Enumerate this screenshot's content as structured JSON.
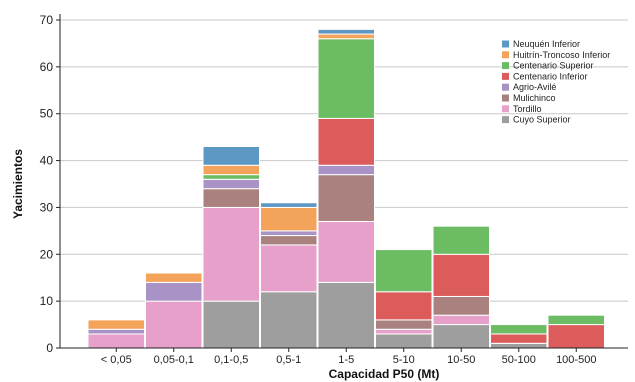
{
  "chart_data": {
    "type": "bar",
    "stacked": true,
    "title": "",
    "xlabel": "Capacidad P50 (Mt)",
    "ylabel": "Yacimientos",
    "ylim": [
      0,
      70
    ],
    "yticks": [
      0,
      10,
      20,
      30,
      40,
      50,
      60,
      70
    ],
    "grid": "horizontal",
    "legend_position": "top-right",
    "categories": [
      "< 0,05",
      "0,05-0,1",
      "0,1-0,5",
      "0,5-1",
      "1-5",
      "5-10",
      "10-50",
      "50-100",
      "100-500"
    ],
    "series": [
      {
        "name": "Cuyo Superior",
        "color": "#9e9e9e",
        "values": [
          0,
          0,
          10,
          12,
          14,
          3,
          5,
          1,
          0
        ]
      },
      {
        "name": "Tordillo",
        "color": "#e6a0c9",
        "values": [
          3,
          10,
          20,
          10,
          13,
          1,
          2,
          0,
          0
        ]
      },
      {
        "name": "Mulichinco",
        "color": "#a98280",
        "values": [
          0,
          0,
          4,
          2,
          10,
          2,
          4,
          0,
          0
        ]
      },
      {
        "name": "Agrio-Avilé",
        "color": "#a892c6",
        "values": [
          1,
          4,
          2,
          1,
          2,
          0,
          0,
          0,
          0
        ]
      },
      {
        "name": "Centenario Inferior",
        "color": "#dc5c5c",
        "values": [
          0,
          0,
          0,
          0,
          10,
          6,
          9,
          2,
          5
        ]
      },
      {
        "name": "Centenario Superior",
        "color": "#6cbc63",
        "values": [
          0,
          0,
          1,
          0,
          17,
          9,
          6,
          2,
          2
        ]
      },
      {
        "name": "Huitrín-Troncoso Inferior",
        "color": "#f4a35a",
        "values": [
          2,
          2,
          2,
          5,
          1,
          0,
          0,
          0,
          0
        ]
      },
      {
        "name": "Neuquén Inferior",
        "color": "#5d98c4",
        "values": [
          0,
          0,
          4,
          1,
          1,
          0,
          0,
          0,
          0
        ]
      }
    ]
  }
}
